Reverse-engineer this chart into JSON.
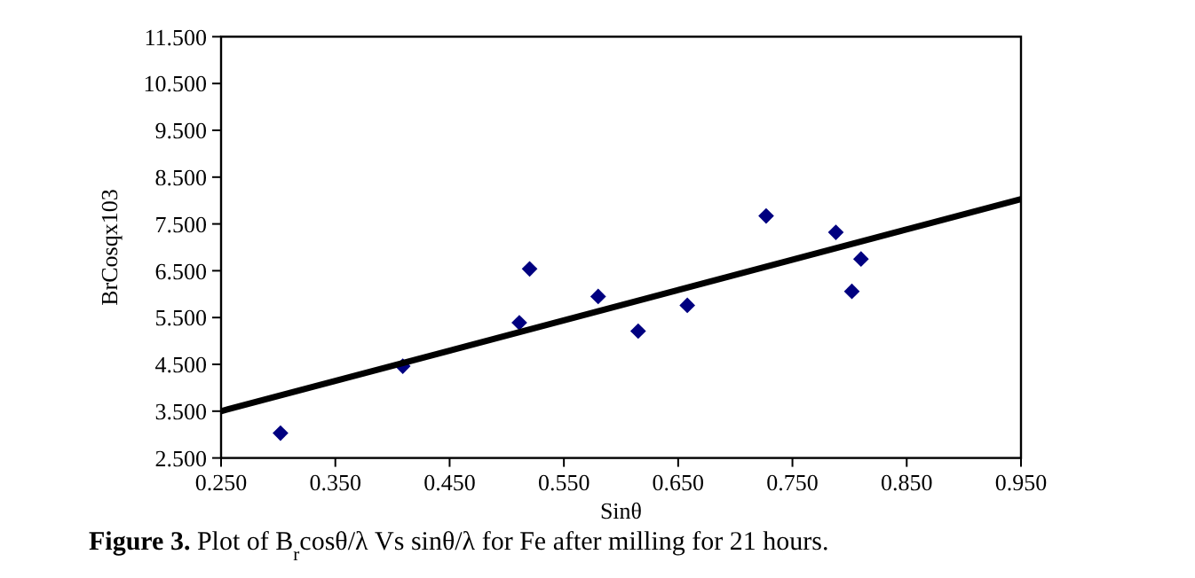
{
  "chart_data": {
    "type": "scatter",
    "xlabel": "Sinθ",
    "ylabel": "BrCosqx103",
    "annotations": [
      "Figure 3. Plot of B$_{r}$cosθ/λ Vs sinθ/λ for Fe after milling for 21 hours."
    ],
    "xlim": [
      0.25,
      0.95
    ],
    "xticks": [
      {
        "value": 0.25,
        "label": "0.250"
      },
      {
        "value": 0.35,
        "label": "0.350"
      },
      {
        "value": 0.45,
        "label": "0.450"
      },
      {
        "value": 0.55,
        "label": "0.550"
      },
      {
        "value": 0.65,
        "label": "0.650"
      },
      {
        "value": 0.75,
        "label": "0.750"
      },
      {
        "value": 0.85,
        "label": "0.850"
      },
      {
        "value": 0.95,
        "label": "0.950"
      }
    ],
    "ylim": [
      2.5,
      11.5
    ],
    "yticks": [
      {
        "value": 2.5,
        "label": "2.500"
      },
      {
        "value": 3.5,
        "label": "3.500"
      },
      {
        "value": 4.5,
        "label": "4.500"
      },
      {
        "value": 5.5,
        "label": "5.500"
      },
      {
        "value": 6.5,
        "label": "6.500"
      },
      {
        "value": 7.5,
        "label": "7.500"
      },
      {
        "value": 8.5,
        "label": "8.500"
      },
      {
        "value": 9.5,
        "label": "9.500"
      },
      {
        "value": 10.5,
        "label": "10.500"
      },
      {
        "value": 11.5,
        "label": "11.500"
      }
    ],
    "grid": false,
    "marker": "diamond",
    "series": [
      {
        "type": "scatter",
        "color": "#000080",
        "x": [
          0.302,
          0.409,
          0.511,
          0.52,
          0.58,
          0.615,
          0.658,
          0.727,
          0.788,
          0.802,
          0.81
        ],
        "values": [
          3.03,
          4.46,
          5.39,
          6.54,
          5.95,
          5.21,
          5.76,
          7.67,
          7.32,
          6.06,
          6.75
        ]
      },
      {
        "type": "line",
        "color": "#000000",
        "marker": "none",
        "line_style": "solid",
        "x": [
          0.25,
          0.95
        ],
        "values": [
          3.5,
          8.03
        ]
      }
    ]
  }
}
